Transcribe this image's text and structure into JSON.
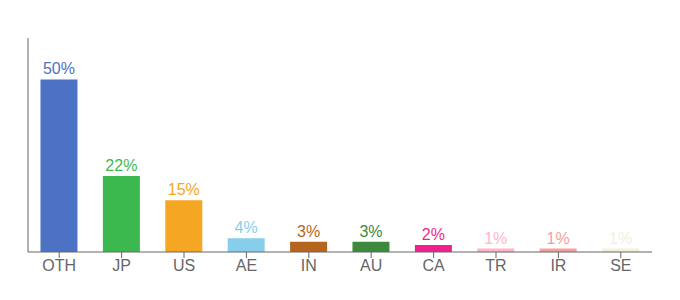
{
  "chart_data": {
    "type": "bar",
    "categories": [
      "OTH",
      "JP",
      "US",
      "AE",
      "IN",
      "AU",
      "CA",
      "TR",
      "IR",
      "SE"
    ],
    "values": [
      50,
      22,
      15,
      4,
      3,
      3,
      2,
      1,
      1,
      1
    ],
    "value_labels": [
      "50%",
      "22%",
      "15%",
      "4%",
      "3%",
      "3%",
      "2%",
      "1%",
      "1%",
      "1%"
    ],
    "data_labels": true,
    "colors": [
      "#4d72c4",
      "#3cb94e",
      "#f5a623",
      "#87ceeb",
      "#b5651d",
      "#3d8a3d",
      "#f01f8f",
      "#ffb6c8",
      "#f4a0a0",
      "#f5f0dc"
    ],
    "ylim": [
      0,
      62
    ],
    "tick_labels": "x",
    "grid": false
  }
}
